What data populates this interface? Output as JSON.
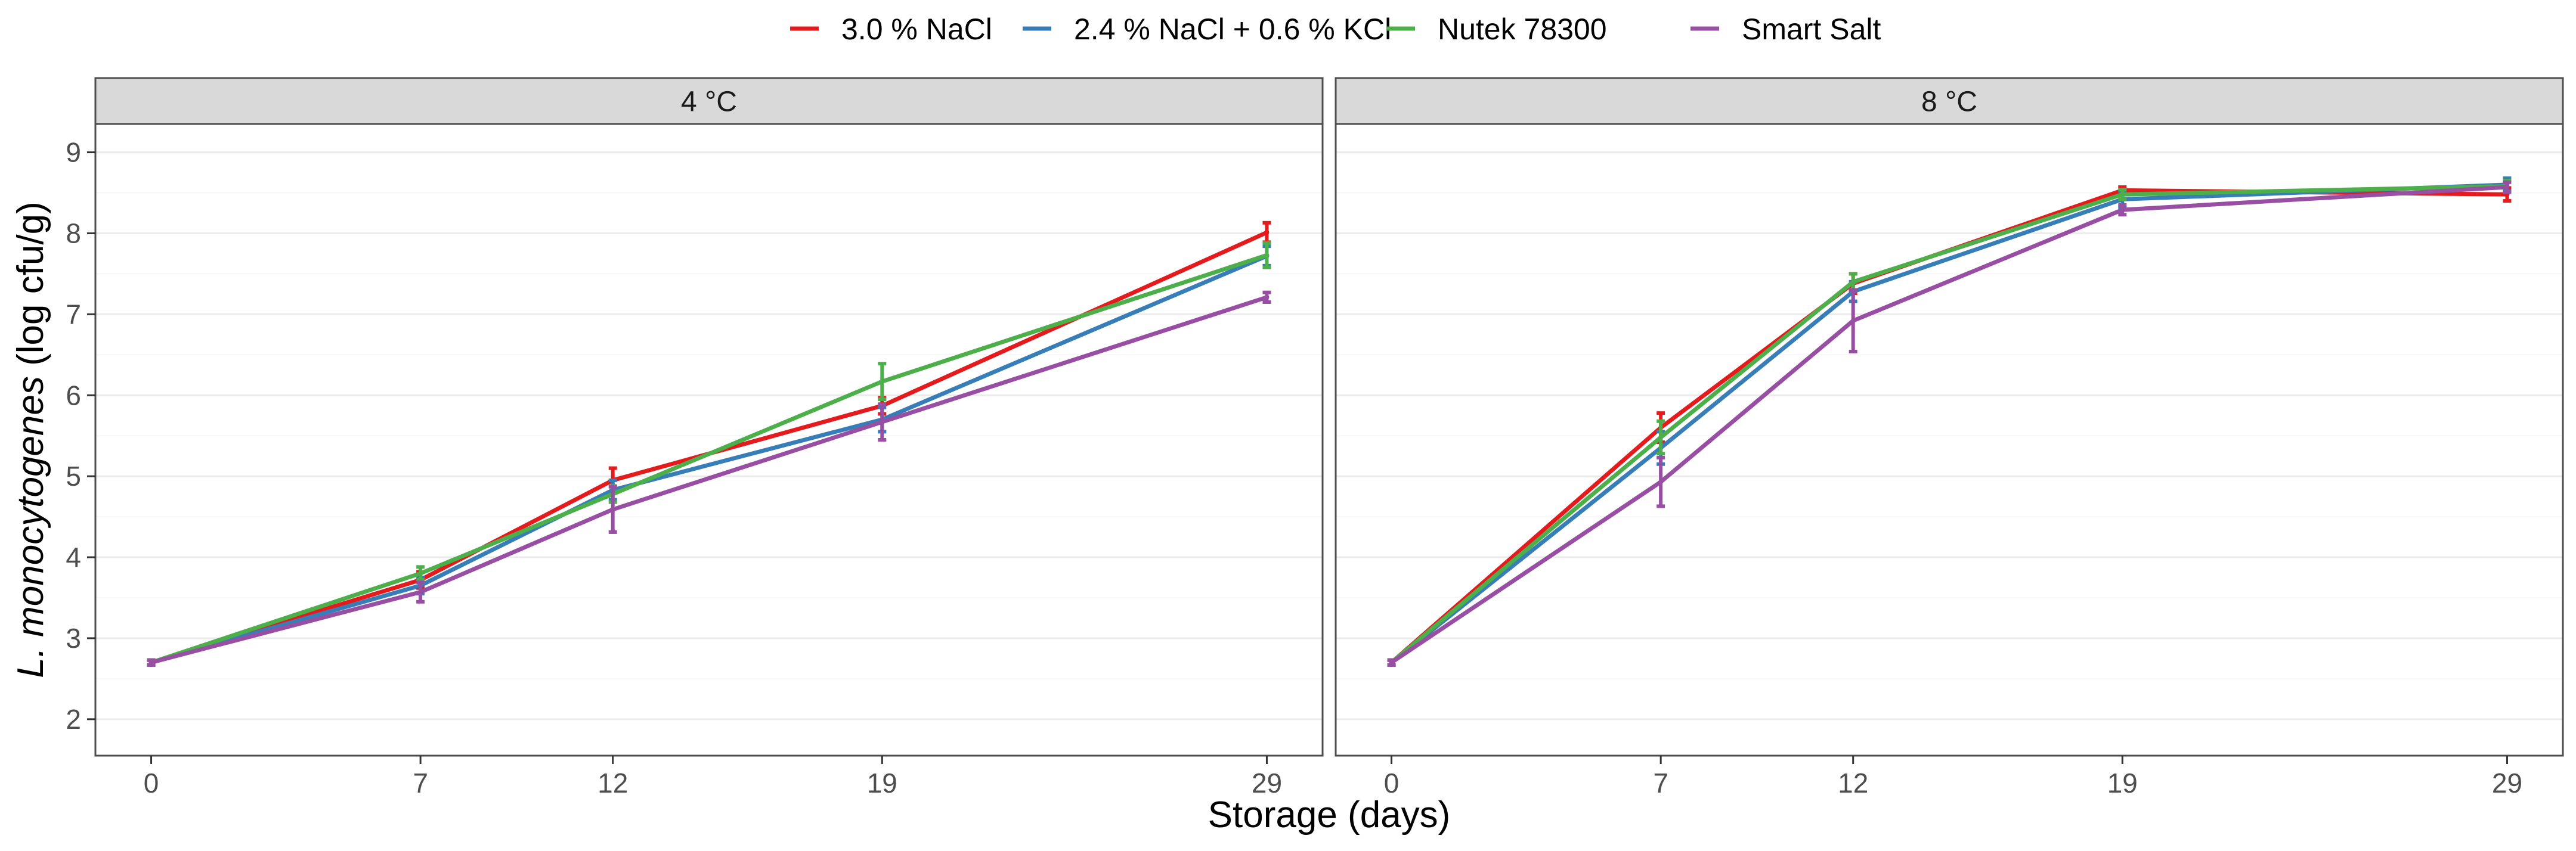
{
  "chart_data": {
    "type": "line",
    "xlabel": "Storage (days)",
    "ylabel_italic": "L. monocytogenes",
    "ylabel_rest": " (log cfu/g)",
    "x_ticks": [
      0,
      7,
      12,
      19,
      29
    ],
    "x_tick_labels": [
      "0",
      "7",
      "12",
      "19",
      "29"
    ],
    "y_ticks": [
      2,
      3,
      4,
      5,
      6,
      7,
      8,
      9
    ],
    "y_tick_labels": [
      "2",
      "3",
      "4",
      "5",
      "6",
      "7",
      "8",
      "9"
    ],
    "ylim": [
      1.55,
      9.35
    ],
    "xlim": [
      -1.45,
      30.45
    ],
    "legend_position": "top",
    "series_names": [
      "3.0 % NaCl",
      "2.4 % NaCl + 0.6 % KCl",
      "Nutek 78300",
      "Smart Salt"
    ],
    "series_colors": [
      "#e41a1c",
      "#377eb8",
      "#4daf4a",
      "#984ea3"
    ],
    "panels": [
      {
        "title": "4 °C",
        "x": [
          0,
          7,
          12,
          19,
          29
        ],
        "series": [
          {
            "name": "3.0 % NaCl",
            "values": [
              2.7,
              3.72,
              4.95,
              5.87,
              8.01
            ],
            "error": [
              0.03,
              0.1,
              0.15,
              0.1,
              0.12
            ]
          },
          {
            "name": "2.4 % NaCl + 0.6 % KCl",
            "values": [
              2.7,
              3.65,
              4.83,
              5.7,
              7.72
            ],
            "error": [
              0.03,
              0.1,
              0.12,
              0.15,
              0.12
            ]
          },
          {
            "name": "Nutek 78300",
            "values": [
              2.7,
              3.8,
              4.78,
              6.17,
              7.73
            ],
            "error": [
              0.03,
              0.08,
              0.1,
              0.22,
              0.15
            ]
          },
          {
            "name": "Smart Salt",
            "values": [
              2.7,
              3.57,
              4.59,
              5.67,
              7.21
            ],
            "error": [
              0.03,
              0.12,
              0.28,
              0.22,
              0.06
            ]
          }
        ]
      },
      {
        "title": "8 °C",
        "x": [
          0,
          7,
          12,
          19,
          29
        ],
        "series": [
          {
            "name": "3.0 % NaCl",
            "values": [
              2.7,
              5.6,
              7.38,
              8.53,
              8.48
            ],
            "error": [
              0.03,
              0.18,
              0.12,
              0.04,
              0.08
            ]
          },
          {
            "name": "2.4 % NaCl + 0.6 % KCl",
            "values": [
              2.7,
              5.35,
              7.28,
              8.42,
              8.6
            ],
            "error": [
              0.03,
              0.2,
              0.12,
              0.1,
              0.08
            ]
          },
          {
            "name": "Nutek 78300",
            "values": [
              2.7,
              5.48,
              7.4,
              8.48,
              8.58
            ],
            "error": [
              0.03,
              0.2,
              0.1,
              0.06,
              0.07
            ]
          },
          {
            "name": "Smart Salt",
            "values": [
              2.7,
              4.93,
              6.92,
              8.29,
              8.57
            ],
            "error": [
              0.03,
              0.3,
              0.38,
              0.06,
              0.06
            ]
          }
        ]
      }
    ]
  }
}
